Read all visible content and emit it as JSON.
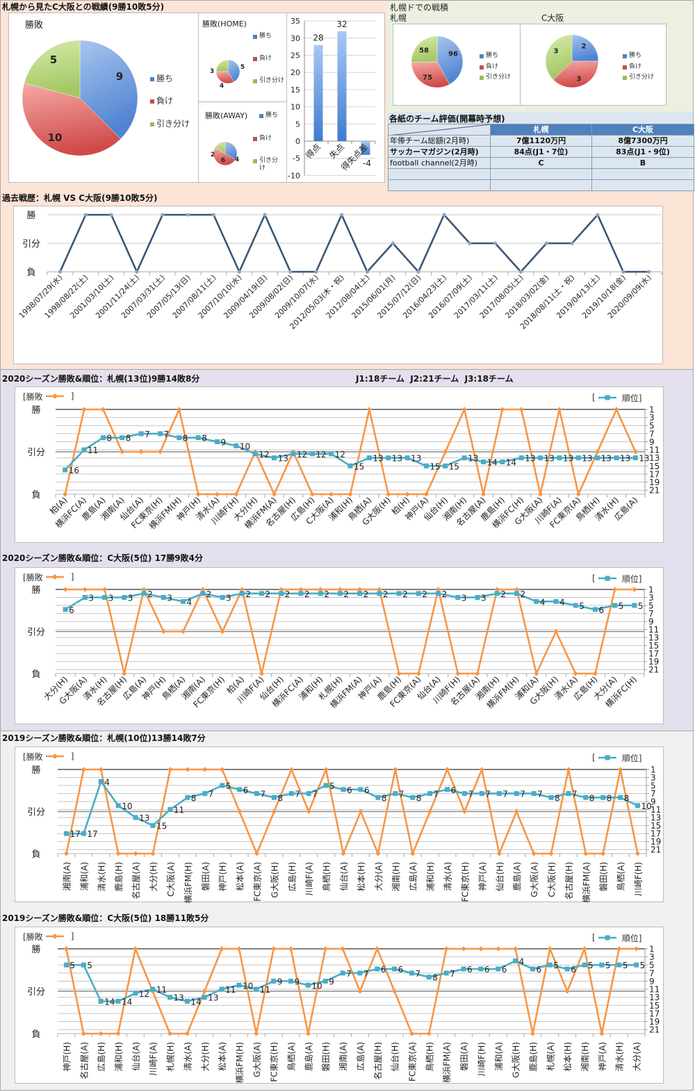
{
  "header": {
    "summary_title": "札幌から見たC大阪との戦績(9勝10敗5分)",
    "dome_title": "札幌ドでの戦積",
    "league_info": "J1:18チーム  J2:21チーム  J3:18チーム"
  },
  "eval_table": {
    "title": "各紙のチーム評価(開幕時予想)",
    "columns": [
      "",
      "札幌",
      "C大阪"
    ],
    "rows": [
      [
        "年俸チーム総額(2月時)",
        "7億1120万円",
        "8億7300万円"
      ],
      [
        "サッカーマガジン(2月時)",
        "84点(J1・7位)",
        "83点(J1・9位)"
      ],
      [
        "football channel(2月時)",
        "C",
        "B"
      ],
      [
        "",
        "",
        ""
      ],
      [
        "",
        "",
        ""
      ]
    ]
  },
  "colors": {
    "win": "#4f81bd",
    "loss": "#c0504d",
    "draw": "#9bbb59",
    "result_line": "#f79646",
    "rank_line": "#4bacc6",
    "history_line": "#3b5675",
    "table_header": "#4f81bd",
    "table_row": "#dce6f1"
  },
  "chart_data": [
    {
      "type": "pie",
      "title": "勝敗",
      "labels": [
        "勝ち",
        "負け",
        "引き分け"
      ],
      "values": [
        9,
        10,
        5
      ]
    },
    {
      "type": "pie",
      "title": "勝敗(HOME)",
      "labels": [
        "勝ち",
        "負け",
        "引き分け"
      ],
      "values": [
        5,
        4,
        3
      ]
    },
    {
      "type": "pie",
      "title": "勝敗(AWAY)",
      "labels": [
        "勝ち",
        "負け",
        "引き分け"
      ],
      "values": [
        4,
        6,
        2
      ]
    },
    {
      "type": "bar",
      "title": "",
      "categories": [
        "得点",
        "失点",
        "得失点差"
      ],
      "values": [
        28,
        32,
        -4
      ],
      "ylim": [
        -10,
        35
      ],
      "yticks": [
        -10,
        -5,
        0,
        5,
        10,
        15,
        20,
        25,
        30,
        35
      ],
      "grid": true
    },
    {
      "type": "pie",
      "title": "札幌",
      "labels": [
        "勝ち",
        "負け",
        "引き分け"
      ],
      "values": [
        96,
        75,
        58
      ]
    },
    {
      "type": "pie",
      "title": "C大阪",
      "labels": [
        "勝ち",
        "負け",
        "引き分け"
      ],
      "values": [
        2,
        3,
        3
      ]
    },
    {
      "type": "line",
      "title": "過去戦歴：札幌 VS C大阪(9勝10敗5分)",
      "categories": [
        "1998/07/29(水)",
        "1998/08/22(土)",
        "2001/03/10(土)",
        "2001/11/24(土)",
        "2007/03/31(土)",
        "2007/05/13(日)",
        "2007/08/11(土)",
        "2007/10/10(水)",
        "2009/04/19(日)",
        "2009/08/02(日)",
        "2009/10/07(水)",
        "2012/05/03(木・祝)",
        "2012/08/04(土)",
        "2015/06/01(月)",
        "2015/07/12(日)",
        "2016/04/23(土)",
        "2016/07/09(土)",
        "2017/03/11(土)",
        "2017/08/05(土)",
        "2018/03/02(金)",
        "2018/08/11(土・祝)",
        "2019/04/13(土)",
        "2019/10/18(金)",
        "2020/09/09(水)"
      ],
      "series": [
        {
          "name": "勝敗",
          "values": [
            -1,
            1,
            1,
            -1,
            1,
            1,
            1,
            -1,
            1,
            -1,
            -1,
            1,
            -1,
            0,
            -1,
            1,
            0,
            0,
            -1,
            0,
            0,
            1,
            -1,
            -1
          ]
        }
      ],
      "result_axis": {
        "range": [
          -1,
          1
        ],
        "levels": [
          {
            "label": "勝",
            "value": 1
          },
          {
            "label": "引分",
            "value": 0
          },
          {
            "label": "負",
            "value": -1
          }
        ]
      }
    },
    {
      "type": "line",
      "title": "2020シーズン勝敗&順位：札幌(13位)9勝14敗8分",
      "categories": [
        "柏(A)",
        "横浜FC(A)",
        "鹿島(A)",
        "湘南(A)",
        "仙台(A)",
        "FC東京(H)",
        "横浜FM(H)",
        "神戸(H)",
        "清水(A)",
        "川崎F(H)",
        "大分(H)",
        "横浜FM(A)",
        "名古屋(H)",
        "広島(H)",
        "C大阪(A)",
        "浦和(H)",
        "鳥栖(A)",
        "G大阪(H)",
        "柏(H)",
        "神戸(A)",
        "仙台(H)",
        "湘南(H)",
        "名古屋(A)",
        "鹿島(H)",
        "横浜FC(H)",
        "G大阪(A)",
        "川崎F(A)",
        "FC東京(A)",
        "鳥栖(H)",
        "清水(H)",
        "広島(A)"
      ],
      "series": [
        {
          "name": "勝敗",
          "values": [
            -1,
            1,
            1,
            0,
            0,
            0,
            1,
            -1,
            -1,
            -1,
            0,
            -1,
            0,
            -1,
            -1,
            -1,
            1,
            -1,
            -1,
            -1,
            0,
            1,
            -1,
            1,
            1,
            -1,
            1,
            -1,
            0,
            1,
            0
          ]
        },
        {
          "name": "順位",
          "values": [
            16,
            11,
            8,
            8,
            7,
            7,
            8,
            8,
            9,
            10,
            12,
            13,
            12,
            12,
            12,
            15,
            13,
            13,
            13,
            15,
            15,
            13,
            14,
            14,
            13,
            13,
            13,
            13,
            13,
            13,
            13
          ]
        }
      ],
      "result_axis": {
        "range": [
          -1,
          1
        ],
        "levels": [
          {
            "label": "勝",
            "value": 1
          },
          {
            "label": "引分",
            "value": 0
          },
          {
            "label": "負",
            "value": -1
          }
        ]
      },
      "rank_axis": {
        "range": [
          1,
          22
        ],
        "reversed": true,
        "ticks": [
          1,
          3,
          5,
          7,
          9,
          11,
          13,
          15,
          17,
          19,
          21
        ]
      },
      "legend": {
        "result_open": "[勝敗",
        "result_close": "]",
        "rank_open": "[",
        "rank_close": "順位]"
      }
    },
    {
      "type": "line",
      "title": "2020シーズン勝敗&順位：C大阪(5位) 17勝9敗4分",
      "categories": [
        "大分(H)",
        "G大阪(A)",
        "清水(H)",
        "名古屋(H)",
        "広島(A)",
        "神戸(H)",
        "鳥栖(A)",
        "湘南(A)",
        "FC東京(H)",
        "柏(A)",
        "川崎F(A)",
        "仙台(H)",
        "横浜FC(A)",
        "浦和(H)",
        "札幌(H)",
        "横浜FM(A)",
        "神戸(A)",
        "鹿島(H)",
        "FC東京(A)",
        "仙台(A)",
        "川崎F(H)",
        "名古屋(A)",
        "湘南(H)",
        "横浜FM(H)",
        "浦和(A)",
        "G大阪(H)",
        "清水(A)",
        "広島(H)",
        "大分(A)",
        "横浜FC(H)"
      ],
      "series": [
        {
          "name": "勝敗",
          "values": [
            1,
            1,
            1,
            -1,
            1,
            0,
            0,
            1,
            0,
            1,
            -1,
            1,
            1,
            1,
            1,
            1,
            1,
            -1,
            -1,
            1,
            -1,
            -1,
            1,
            1,
            -1,
            0,
            -1,
            -1,
            1,
            1
          ]
        },
        {
          "name": "順位",
          "values": [
            6,
            3,
            3,
            3,
            2,
            3,
            4,
            2,
            3,
            2,
            2,
            2,
            2,
            2,
            2,
            2,
            2,
            2,
            2,
            2,
            3,
            3,
            2,
            2,
            4,
            4,
            5,
            6,
            5,
            5
          ]
        }
      ],
      "result_axis": {
        "range": [
          -1,
          1
        ],
        "levels": [
          {
            "label": "勝",
            "value": 1
          },
          {
            "label": "引分",
            "value": 0
          },
          {
            "label": "負",
            "value": -1
          }
        ]
      },
      "rank_axis": {
        "range": [
          1,
          22
        ],
        "reversed": true,
        "ticks": [
          1,
          3,
          5,
          7,
          9,
          11,
          13,
          15,
          17,
          19,
          21
        ]
      },
      "legend": {
        "result_open": "[勝敗",
        "result_close": "]",
        "rank_open": "[",
        "rank_close": "順位]"
      }
    },
    {
      "type": "line",
      "title": "2019シーズン勝敗&順位：札幌(10位)13勝14敗7分",
      "categories": [
        "湘南(A)",
        "浦和(A)",
        "清水(H)",
        "鹿島(H)",
        "名古屋(A)",
        "大分(H)",
        "C大阪(A)",
        "横浜FM(H)",
        "磐田(A)",
        "神戸(H)",
        "松本(A)",
        "FC東京(A)",
        "G大阪(H)",
        "広島(H)",
        "川崎F(A)",
        "鳥栖(H)",
        "仙台(A)",
        "松本(H)",
        "大分(A)",
        "湘南(H)",
        "広島(A)",
        "浦和(H)",
        "清水(A)",
        "FC東京(H)",
        "神戸(A)",
        "仙台(H)",
        "鹿島(A)",
        "G大阪(A)",
        "C大阪(H)",
        "名古屋(H)",
        "横浜FM(A)",
        "磐田(H)",
        "鳥栖(A)",
        "川崎F(H)"
      ],
      "series": [
        {
          "name": "勝敗",
          "values": [
            -1,
            1,
            1,
            -1,
            -1,
            -1,
            1,
            1,
            1,
            1,
            0,
            -1,
            0,
            1,
            0,
            1,
            -1,
            0,
            -1,
            1,
            -1,
            0,
            1,
            0,
            1,
            -1,
            0,
            -1,
            -1,
            1,
            -1,
            -1,
            1,
            -1
          ]
        },
        {
          "name": "順位",
          "values": [
            17,
            17,
            4,
            10,
            13,
            15,
            11,
            8,
            7,
            5,
            6,
            7,
            8,
            7,
            7,
            5,
            6,
            6,
            8,
            7,
            8,
            7,
            6,
            7,
            7,
            7,
            7,
            7,
            8,
            7,
            8,
            8,
            8,
            10
          ]
        }
      ],
      "result_axis": {
        "range": [
          -1,
          1
        ],
        "levels": [
          {
            "label": "勝",
            "value": 1
          },
          {
            "label": "引分",
            "value": 0
          },
          {
            "label": "負",
            "value": -1
          }
        ]
      },
      "rank_axis": {
        "range": [
          1,
          22
        ],
        "reversed": true,
        "ticks": [
          1,
          3,
          5,
          7,
          9,
          11,
          13,
          15,
          17,
          19,
          21
        ]
      },
      "legend": {
        "result_open": "[勝敗",
        "result_close": "]",
        "rank_open": "[",
        "rank_close": "順位]"
      }
    },
    {
      "type": "line",
      "title": "2019シーズン勝敗&順位：C大阪(5位) 18勝11敗5分",
      "categories": [
        "神戸(H)",
        "名古屋(A)",
        "広島(H)",
        "浦和(H)",
        "仙台(A)",
        "川崎F(A)",
        "札幌(H)",
        "清水(A)",
        "大分(H)",
        "松本(A)",
        "横浜FM(H)",
        "G大阪(A)",
        "FC東京(H)",
        "鳥栖(A)",
        "鹿島(A)",
        "磐田(H)",
        "湘南(A)",
        "広島(A)",
        "名古屋(H)",
        "仙台(H)",
        "FC東京(A)",
        "鳥栖(H)",
        "横浜FM(A)",
        "磐田(A)",
        "川崎F(H)",
        "浦和(A)",
        "G大阪(H)",
        "鹿島(H)",
        "札幌(A)",
        "松本(H)",
        "湘南(H)",
        "神戸(A)",
        "清水(H)",
        "大分(A)"
      ],
      "series": [
        {
          "name": "勝敗",
          "values": [
            1,
            -1,
            -1,
            -1,
            1,
            0,
            -1,
            -1,
            0,
            1,
            1,
            -1,
            1,
            1,
            -1,
            1,
            1,
            0,
            1,
            0,
            -1,
            -1,
            1,
            1,
            1,
            1,
            1,
            -1,
            1,
            0,
            1,
            -1,
            1,
            1
          ]
        },
        {
          "name": "順位",
          "values": [
            5,
            5,
            14,
            14,
            12,
            11,
            13,
            14,
            13,
            11,
            10,
            11,
            9,
            9,
            10,
            9,
            7,
            7,
            6,
            6,
            7,
            8,
            7,
            6,
            6,
            6,
            4,
            6,
            5,
            6,
            5,
            5,
            5,
            5
          ]
        }
      ],
      "result_axis": {
        "range": [
          -1,
          1
        ],
        "levels": [
          {
            "label": "勝",
            "value": 1
          },
          {
            "label": "引分",
            "value": 0
          },
          {
            "label": "負",
            "value": -1
          }
        ]
      },
      "rank_axis": {
        "range": [
          1,
          22
        ],
        "reversed": true,
        "ticks": [
          1,
          3,
          5,
          7,
          9,
          11,
          13,
          15,
          17,
          19,
          21
        ]
      },
      "legend": {
        "result_open": "[勝敗",
        "result_close": "]",
        "rank_open": "[",
        "rank_close": "順位]"
      }
    }
  ]
}
